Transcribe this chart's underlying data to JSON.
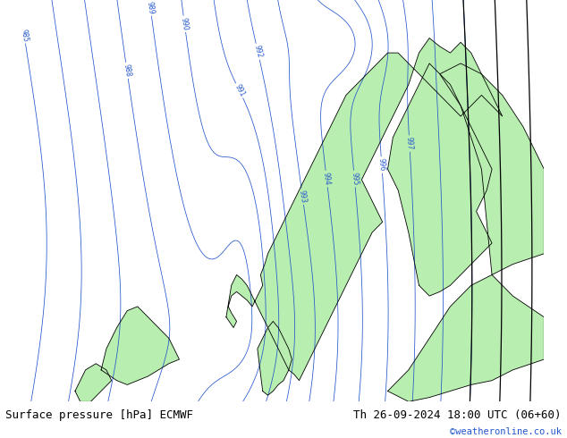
{
  "title_left": "Surface pressure [hPa] ECMWF",
  "title_right": "Th 26-09-2024 18:00 UTC (06+60)",
  "copyright": "©weatheronline.co.uk",
  "bg_color": "#d4dce8",
  "land_color": "#b8eeb0",
  "contour_color_blue": "#2255cc",
  "contour_color_black": "#000000",
  "contour_color_red": "#dd2222",
  "footer_bg": "#c8e8c0",
  "footer_text_color": "#000000",
  "copyright_color": "#2255cc",
  "figwidth": 6.34,
  "figheight": 4.9,
  "dpi": 100,
  "footer_fontsize": 9,
  "title_fontsize": 9,
  "lon_min": -15,
  "lon_max": 35,
  "lat_min": 54,
  "lat_max": 73
}
